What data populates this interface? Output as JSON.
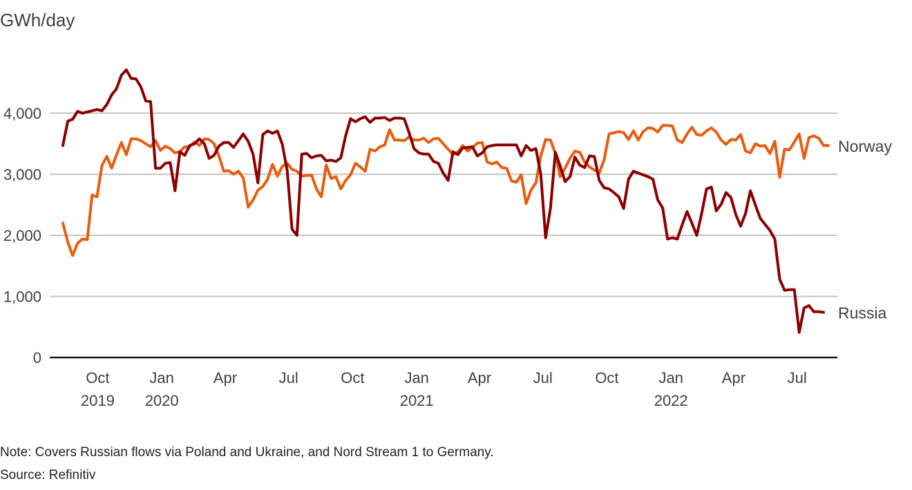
{
  "chart_data": {
    "type": "line",
    "title": "",
    "ylabel": "GWh/day",
    "xlabel": "",
    "ylim": [
      0,
      4800
    ],
    "grid": true,
    "yticks": [
      {
        "value": 0,
        "label": "0"
      },
      {
        "value": 1000,
        "label": "1,000"
      },
      {
        "value": 2000,
        "label": "2,000"
      },
      {
        "value": 3000,
        "label": "3,000"
      },
      {
        "value": 4000,
        "label": "4,000"
      }
    ],
    "x_start": "2019-08-12",
    "x_step_days": 7,
    "xticks": [
      {
        "date": "2019-10-01",
        "label": "Oct",
        "sublabel": "2019"
      },
      {
        "date": "2020-01-01",
        "label": "Jan",
        "sublabel": "2020"
      },
      {
        "date": "2020-04-01",
        "label": "Apr",
        "sublabel": ""
      },
      {
        "date": "2020-07-01",
        "label": "Jul",
        "sublabel": ""
      },
      {
        "date": "2020-10-01",
        "label": "Oct",
        "sublabel": ""
      },
      {
        "date": "2021-01-01",
        "label": "Jan",
        "sublabel": "2021"
      },
      {
        "date": "2021-04-01",
        "label": "Apr",
        "sublabel": ""
      },
      {
        "date": "2021-07-01",
        "label": "Jul",
        "sublabel": ""
      },
      {
        "date": "2021-10-01",
        "label": "Oct",
        "sublabel": ""
      },
      {
        "date": "2022-01-01",
        "label": "Jan",
        "sublabel": "2022"
      },
      {
        "date": "2022-04-01",
        "label": "Apr",
        "sublabel": ""
      },
      {
        "date": "2022-07-01",
        "label": "Jul",
        "sublabel": ""
      }
    ],
    "legend": "inline-right",
    "series": [
      {
        "name": "Russia",
        "color": "#8b0000",
        "values": [
          3470,
          3870,
          3900,
          4030,
          4000,
          4020,
          4040,
          4060,
          4040,
          4140,
          4300,
          4400,
          4620,
          4710,
          4570,
          4560,
          4430,
          4200,
          4190,
          3100,
          3100,
          3180,
          3190,
          2730,
          3370,
          3310,
          3470,
          3500,
          3580,
          3500,
          3260,
          3310,
          3460,
          3520,
          3520,
          3440,
          3550,
          3660,
          3540,
          3330,
          2860,
          3650,
          3710,
          3670,
          3710,
          3490,
          3060,
          2100,
          2000,
          3330,
          3340,
          3270,
          3300,
          3310,
          3220,
          3230,
          3210,
          3270,
          3630,
          3910,
          3860,
          3910,
          3940,
          3850,
          3920,
          3920,
          3930,
          3880,
          3920,
          3920,
          3910,
          3680,
          3420,
          3350,
          3330,
          3330,
          3210,
          3180,
          3020,
          2900,
          3370,
          3320,
          3430,
          3440,
          3450,
          3300,
          3350,
          3450,
          3470,
          3480,
          3480,
          3480,
          3480,
          3480,
          3300,
          3470,
          3390,
          3420,
          3000,
          1960,
          2450,
          3360,
          3130,
          2880,
          2960,
          3280,
          3150,
          3110,
          3300,
          3290,
          2900,
          2780,
          2760,
          2700,
          2630,
          2440,
          2920,
          3050,
          3020,
          2990,
          2960,
          2920,
          2580,
          2450,
          1940,
          1960,
          1940,
          2170,
          2390,
          2200,
          2000,
          2360,
          2760,
          2790,
          2400,
          2510,
          2700,
          2620,
          2340,
          2150,
          2360,
          2730,
          2500,
          2280,
          2180,
          2080,
          1940,
          1280,
          1100,
          1110,
          1110,
          410,
          810,
          850,
          750,
          750,
          740
        ]
      },
      {
        "name": "Norway",
        "color": "#e85d0f",
        "values": [
          2200,
          1890,
          1670,
          1870,
          1940,
          1930,
          2660,
          2630,
          3140,
          3290,
          3100,
          3320,
          3520,
          3320,
          3580,
          3580,
          3550,
          3500,
          3450,
          3550,
          3390,
          3460,
          3420,
          3350,
          3370,
          3450,
          3450,
          3530,
          3470,
          3580,
          3570,
          3500,
          3300,
          3050,
          3060,
          3000,
          3050,
          2940,
          2460,
          2580,
          2740,
          2800,
          2920,
          3160,
          2970,
          3130,
          3180,
          3080,
          3050,
          2970,
          2980,
          2990,
          2760,
          2630,
          3150,
          2930,
          2960,
          2760,
          2900,
          2990,
          3180,
          3120,
          3050,
          3410,
          3380,
          3450,
          3480,
          3730,
          3560,
          3560,
          3550,
          3610,
          3560,
          3560,
          3590,
          3520,
          3580,
          3590,
          3500,
          3410,
          3320,
          3370,
          3470,
          3380,
          3440,
          3510,
          3520,
          3200,
          3170,
          3200,
          3110,
          3100,
          2890,
          2870,
          2990,
          2520,
          2740,
          2860,
          3300,
          3570,
          3560,
          3340,
          2960,
          3100,
          3260,
          3380,
          3360,
          3200,
          3120,
          3070,
          3020,
          3240,
          3660,
          3680,
          3700,
          3680,
          3570,
          3710,
          3560,
          3700,
          3760,
          3750,
          3690,
          3800,
          3800,
          3790,
          3560,
          3520,
          3660,
          3770,
          3650,
          3640,
          3710,
          3760,
          3690,
          3560,
          3490,
          3570,
          3560,
          3650,
          3380,
          3350,
          3500,
          3460,
          3470,
          3340,
          3540,
          2950,
          3410,
          3400,
          3530,
          3660,
          3260,
          3600,
          3630,
          3590,
          3470,
          3470
        ]
      }
    ]
  },
  "header": {
    "unit_label": "GWh/day"
  },
  "footer": {
    "note": "Note: Covers Russian flows via Poland and Ukraine, and Nord Stream 1 to Germany.",
    "source": "Source: Refinitiv"
  }
}
